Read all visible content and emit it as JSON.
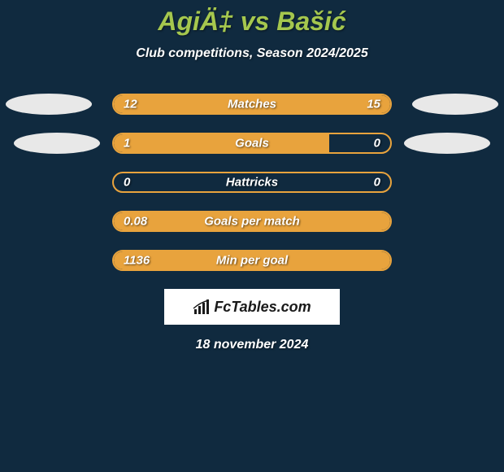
{
  "title": "AgiÄ‡ vs Bašić",
  "subtitle": "Club competitions, Season 2024/2025",
  "date": "18 november 2024",
  "logo_text": "FcTables.com",
  "colors": {
    "background": "#102a3f",
    "accent": "#a5c74e",
    "bar_fill": "#e8a33d",
    "bar_border": "#e8a33d",
    "ellipse": "#e8e8e8",
    "text": "#ffffff",
    "logo_bg": "#ffffff",
    "logo_text": "#1a1a1a"
  },
  "stats": [
    {
      "label": "Matches",
      "left_value": "12",
      "right_value": "15",
      "left_pct": 44,
      "right_pct": 56,
      "show_ellipses": true,
      "ellipse_offset": "normal"
    },
    {
      "label": "Goals",
      "left_value": "1",
      "right_value": "0",
      "left_pct": 78,
      "right_pct": 0,
      "show_ellipses": true,
      "ellipse_offset": "small"
    },
    {
      "label": "Hattricks",
      "left_value": "0",
      "right_value": "0",
      "left_pct": 0,
      "right_pct": 0,
      "show_ellipses": false
    },
    {
      "label": "Goals per match",
      "left_value": "0.08",
      "right_value": "",
      "left_pct": 100,
      "right_pct": 0,
      "show_ellipses": false,
      "full": true
    },
    {
      "label": "Min per goal",
      "left_value": "1136",
      "right_value": "",
      "left_pct": 100,
      "right_pct": 0,
      "show_ellipses": false,
      "full": true
    }
  ]
}
